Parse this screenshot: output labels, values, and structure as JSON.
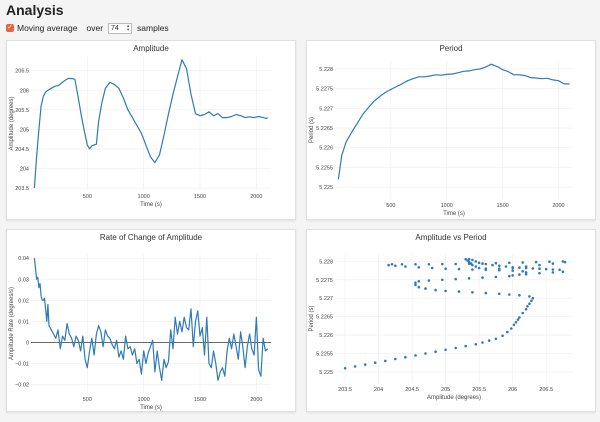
{
  "page": {
    "title": "Analysis"
  },
  "controls": {
    "moving_average_label": "Moving average",
    "over_label": "over",
    "samples_value": "74",
    "samples_label": "samples"
  },
  "colors": {
    "line": "#2f7ab7",
    "checkbox": "#e8643a"
  },
  "chart_data": [
    {
      "type": "line",
      "title": "Amplitude",
      "xlabel": "Time (s)",
      "ylabel": "Amplitude (degrees)",
      "xlim": [
        0,
        2130
      ],
      "ylim": [
        203.45,
        206.85
      ],
      "xticks": [
        500,
        1000,
        1500,
        2000
      ],
      "yticks": [
        203.5,
        204,
        204.5,
        205,
        205.5,
        206,
        206.5
      ],
      "ytick_labels": [
        "203.5",
        "204",
        "204.5",
        "205",
        "205.5",
        "206",
        "206.5"
      ],
      "grid": true,
      "series": [
        {
          "x": [
            30,
            50,
            70,
            90,
            110,
            130,
            150,
            180,
            210,
            240,
            270,
            300,
            330,
            360,
            390,
            420,
            450,
            470,
            500,
            520,
            540,
            560,
            580,
            600,
            630,
            660,
            700,
            740,
            780,
            820,
            860,
            900,
            940,
            980,
            1020,
            1060,
            1100,
            1140,
            1180,
            1220,
            1260,
            1300,
            1340,
            1380,
            1420,
            1460,
            1500,
            1540,
            1580,
            1620,
            1660,
            1700,
            1740,
            1780,
            1820,
            1860,
            1900,
            1940,
            1980,
            2020,
            2060,
            2090,
            2100
          ],
          "y": [
            203.5,
            204.3,
            205,
            205.6,
            205.85,
            205.95,
            206,
            206.05,
            206.1,
            206.12,
            206.18,
            206.25,
            206.3,
            206.3,
            206.28,
            205.8,
            205.3,
            205,
            204.6,
            204.5,
            204.58,
            204.6,
            204.62,
            205.2,
            205.7,
            206.05,
            206.2,
            206.15,
            206.05,
            205.8,
            205.5,
            205.3,
            205.1,
            204.9,
            204.6,
            204.3,
            204.15,
            204.35,
            204.85,
            205.4,
            205.9,
            206.35,
            206.78,
            206.55,
            205.9,
            205.4,
            205.35,
            205.38,
            205.45,
            205.35,
            205.4,
            205.3,
            205.3,
            205.33,
            205.38,
            205.35,
            205.3,
            205.32,
            205.3,
            205.33,
            205.3,
            205.28,
            205.3
          ]
        }
      ]
    },
    {
      "type": "line",
      "title": "Period",
      "xlabel": "Time (s)",
      "ylabel": "Period (s)",
      "xlim": [
        0,
        2130
      ],
      "ylim": [
        5.2247,
        5.2282
      ],
      "xticks": [
        500,
        1000,
        1500,
        2000
      ],
      "yticks": [
        5.225,
        5.2255,
        5.226,
        5.2265,
        5.227,
        5.2275,
        5.228
      ],
      "ytick_labels": [
        "5.225",
        "5.2255",
        "5.226",
        "5.2265",
        "5.227",
        "5.2275",
        "5.228"
      ],
      "grid": true,
      "series": [
        {
          "x": [
            30,
            60,
            100,
            150,
            200,
            250,
            300,
            350,
            400,
            450,
            500,
            550,
            600,
            650,
            700,
            750,
            800,
            850,
            900,
            950,
            1000,
            1050,
            1100,
            1150,
            1200,
            1250,
            1300,
            1350,
            1400,
            1430,
            1460,
            1500,
            1550,
            1600,
            1650,
            1700,
            1750,
            1800,
            1850,
            1900,
            1950,
            2000,
            2050,
            2090,
            2100
          ],
          "y": [
            5.2252,
            5.2258,
            5.22615,
            5.2264,
            5.22662,
            5.22685,
            5.22702,
            5.22718,
            5.2273,
            5.2274,
            5.22748,
            5.22755,
            5.22762,
            5.2277,
            5.22775,
            5.2278,
            5.2278,
            5.22782,
            5.22785,
            5.22784,
            5.22786,
            5.22787,
            5.2279,
            5.22794,
            5.22795,
            5.22798,
            5.228,
            5.22805,
            5.22812,
            5.22808,
            5.22805,
            5.22798,
            5.22793,
            5.22785,
            5.22785,
            5.22783,
            5.22778,
            5.22777,
            5.22775,
            5.22776,
            5.22772,
            5.2277,
            5.22762,
            5.22762,
            5.22762
          ]
        }
      ]
    },
    {
      "type": "line",
      "title": "Rate of Change of Amplitude",
      "xlabel": "Time (s)",
      "ylabel": "Amplitude Rate (degrees/s)",
      "xlim": [
        0,
        2130
      ],
      "ylim": [
        -0.024,
        0.042
      ],
      "xticks": [
        500,
        1000,
        1500,
        2000
      ],
      "yticks": [
        -0.02,
        -0.01,
        0,
        0.01,
        0.02,
        0.03,
        0.04
      ],
      "ytick_labels": [
        "−0.02",
        "−0.01",
        "0",
        "0.01",
        "0.02",
        "0.03",
        "0.04"
      ],
      "grid": true,
      "series": [
        {
          "x": [
            30,
            40,
            50,
            60,
            70,
            80,
            90,
            100,
            110,
            120,
            130,
            140,
            150,
            160,
            180,
            200,
            220,
            240,
            260,
            280,
            300,
            320,
            340,
            360,
            380,
            400,
            420,
            440,
            460,
            480,
            500,
            520,
            540,
            560,
            580,
            600,
            620,
            640,
            660,
            680,
            700,
            720,
            740,
            760,
            780,
            800,
            820,
            840,
            860,
            880,
            900,
            920,
            940,
            960,
            980,
            1000,
            1020,
            1040,
            1060,
            1080,
            1100,
            1120,
            1140,
            1160,
            1180,
            1200,
            1220,
            1240,
            1260,
            1280,
            1300,
            1320,
            1340,
            1360,
            1380,
            1400,
            1420,
            1440,
            1460,
            1480,
            1500,
            1520,
            1540,
            1560,
            1580,
            1600,
            1620,
            1640,
            1660,
            1680,
            1700,
            1720,
            1740,
            1760,
            1780,
            1800,
            1820,
            1840,
            1860,
            1880,
            1900,
            1920,
            1940,
            1960,
            1980,
            2000,
            2020,
            2040,
            2060,
            2080,
            2100
          ],
          "y": [
            0.04,
            0.035,
            0.03,
            0.031,
            0.026,
            0.028,
            0.022,
            0.02,
            0.02,
            0.021,
            0.016,
            0.01,
            0.018,
            0.008,
            0.006,
            0.004,
            0.002,
            0.006,
            -0.003,
            0.003,
            0.001,
            0.009,
            0.004,
            0.002,
            -0.002,
            0.003,
            0.001,
            -0.004,
            0.003,
            -0.008,
            -0.012,
            -0.004,
            0.002,
            -0.006,
            0.004,
            0.008,
            0.005,
            -0.002,
            0.006,
            0.003,
            0.002,
            -0.001,
            -0.003,
            0.001,
            -0.007,
            -0.004,
            -0.008,
            0.003,
            -0.003,
            -0.002,
            -0.006,
            -0.003,
            -0.01,
            -0.008,
            -0.015,
            -0.004,
            -0.01,
            -0.005,
            -0.002,
            0.001,
            -0.014,
            -0.004,
            -0.012,
            -0.018,
            -0.008,
            -0.012,
            -0.009,
            0.006,
            -0.003,
            0.012,
            0.004,
            0.01,
            0.005,
            0.012,
            0.007,
            0.006,
            0.016,
            -0.002,
            0.01,
            0.015,
            0.003,
            0.007,
            -0.006,
            0.012,
            -0.01,
            -0.012,
            -0.004,
            -0.01,
            -0.018,
            -0.014,
            -0.012,
            -0.016,
            -0.004,
            0.002,
            -0.003,
            0.004,
            -0.002,
            -0.008,
            0.005,
            -0.002,
            -0.012,
            -0.002,
            0.004,
            -0.003,
            -0.006,
            0.012,
            -0.013,
            -0.016,
            0.002,
            -0.004,
            -0.003
          ]
        }
      ]
    },
    {
      "type": "scatter",
      "title": "Amplitude vs Period",
      "xlabel": "Amplitude (degrees)",
      "ylabel": "Period (s)",
      "xlim": [
        203.35,
        206.9
      ],
      "ylim": [
        5.2247,
        5.2282
      ],
      "xticks": [
        203.5,
        204,
        204.5,
        205,
        205.5,
        206,
        206.5
      ],
      "xtick_labels": [
        "203.5",
        "204",
        "204.5",
        "205",
        "205.5",
        "206",
        "206.5"
      ],
      "yticks": [
        5.225,
        5.2255,
        5.226,
        5.2265,
        5.227,
        5.2275,
        5.228
      ],
      "ytick_labels": [
        "5.225",
        "5.2255",
        "5.226",
        "5.2265",
        "5.227",
        "5.2275",
        "5.228"
      ],
      "grid": true,
      "series": [
        {
          "x": [
            203.5,
            203.65,
            203.8,
            203.95,
            204.1,
            204.25,
            204.4,
            204.55,
            204.7,
            204.85,
            205.0,
            205.15,
            205.3,
            205.45,
            205.55,
            205.65,
            205.75,
            205.85,
            205.92,
            205.98,
            206.02,
            206.05,
            206.08,
            206.1,
            206.15,
            206.2,
            206.22,
            206.25,
            206.28,
            206.3,
            206.25,
            206.1,
            205.95,
            205.8,
            205.6,
            205.4,
            205.2,
            205.0,
            204.85,
            204.7,
            204.6,
            204.55,
            204.55,
            204.6,
            204.75,
            204.95,
            205.15,
            205.35,
            205.55,
            205.75,
            205.95,
            206.1,
            206.2,
            206.15,
            206.0,
            205.8,
            205.6,
            205.4,
            205.2,
            205.0,
            204.8,
            204.6,
            204.4,
            204.25,
            204.15,
            204.2,
            204.35,
            204.55,
            204.75,
            204.95,
            205.15,
            205.35,
            205.55,
            205.75,
            205.95,
            206.15,
            206.35,
            206.55,
            206.75,
            206.78,
            206.6,
            206.4,
            206.2,
            206.0,
            205.8,
            205.6,
            205.5,
            205.45,
            205.4,
            205.38,
            205.35,
            205.33,
            205.3,
            205.35,
            205.4,
            205.45,
            205.5,
            205.6,
            205.7,
            205.8,
            205.9,
            206.0,
            206.1,
            206.2,
            206.3,
            206.4,
            206.5,
            206.6,
            206.7,
            206.75,
            206.6,
            206.4,
            206.2,
            206.0
          ],
          "y": [
            5.2251,
            5.22515,
            5.2252,
            5.22525,
            5.2253,
            5.22535,
            5.2254,
            5.22545,
            5.2255,
            5.22555,
            5.2256,
            5.22565,
            5.2257,
            5.22575,
            5.2258,
            5.22585,
            5.2259,
            5.22598,
            5.22608,
            5.22618,
            5.22628,
            5.22635,
            5.22642,
            5.22648,
            5.2266,
            5.2267,
            5.22678,
            5.22685,
            5.22693,
            5.227,
            5.22705,
            5.22708,
            5.2271,
            5.22712,
            5.22714,
            5.22716,
            5.22718,
            5.2272,
            5.22722,
            5.22726,
            5.2273,
            5.22736,
            5.22742,
            5.22746,
            5.22748,
            5.2275,
            5.22752,
            5.22754,
            5.22756,
            5.22758,
            5.2276,
            5.22764,
            5.2277,
            5.22773,
            5.22775,
            5.22776,
            5.22777,
            5.22778,
            5.22779,
            5.2278,
            5.22782,
            5.22784,
            5.22786,
            5.22788,
            5.2279,
            5.22792,
            5.22792,
            5.22792,
            5.22792,
            5.22793,
            5.22793,
            5.22794,
            5.22794,
            5.22795,
            5.22796,
            5.22797,
            5.22798,
            5.22799,
            5.228,
            5.22798,
            5.22794,
            5.2279,
            5.22786,
            5.22782,
            5.2278,
            5.2278,
            5.22782,
            5.22786,
            5.2279,
            5.22794,
            5.22798,
            5.22802,
            5.22806,
            5.22806,
            5.22804,
            5.228,
            5.22796,
            5.22793,
            5.2279,
            5.22788,
            5.22786,
            5.22784,
            5.22783,
            5.22782,
            5.22781,
            5.2278,
            5.22779,
            5.22778,
            5.22777,
            5.22772,
            5.2277,
            5.22768,
            5.22765,
            5.22762
          ]
        }
      ]
    }
  ]
}
